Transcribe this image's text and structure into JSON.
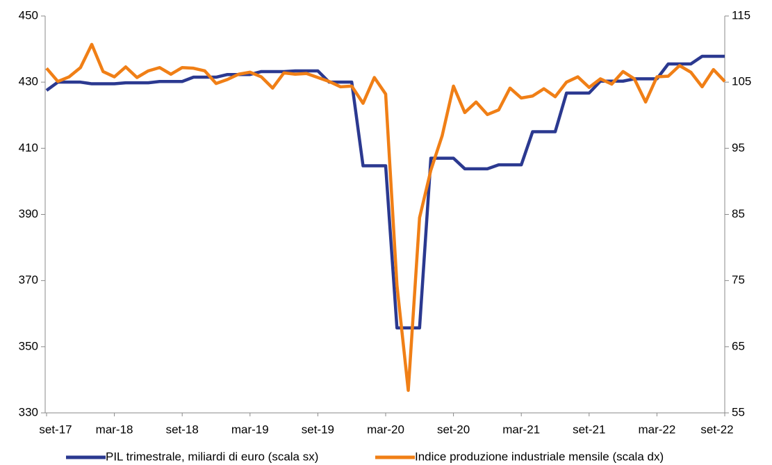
{
  "chart_data": {
    "type": "line",
    "categories": [
      "set-17",
      null,
      null,
      null,
      null,
      null,
      "mar-18",
      null,
      null,
      null,
      null,
      null,
      "set-18",
      null,
      null,
      null,
      null,
      null,
      "mar-19",
      null,
      null,
      null,
      null,
      null,
      "set-19",
      null,
      null,
      null,
      null,
      null,
      "mar-20",
      null,
      null,
      null,
      null,
      null,
      "set-20",
      null,
      null,
      null,
      null,
      null,
      "mar-21",
      null,
      null,
      null,
      null,
      null,
      "set-21",
      null,
      null,
      null,
      null,
      null,
      "mar-22",
      null,
      null,
      null,
      null,
      null,
      "set-22"
    ],
    "series": [
      {
        "name": "PIL trimestrale, miliardi di euro (scala sx)",
        "color": "#2b3990",
        "axis": "y",
        "values": [
          427.5,
          430,
          430,
          430,
          429.5,
          429.5,
          429.5,
          429.8,
          429.8,
          429.8,
          430.2,
          430.2,
          430.2,
          431.5,
          431.5,
          431.5,
          432.3,
          432.3,
          432.3,
          433.2,
          433.2,
          433.2,
          433.4,
          433.4,
          433.4,
          430,
          430,
          430,
          404.7,
          404.7,
          404.7,
          355.7,
          355.7,
          355.7,
          407,
          407,
          407,
          403.8,
          403.8,
          403.8,
          405,
          405,
          405,
          415,
          415,
          415,
          426.7,
          426.7,
          426.7,
          430.3,
          430.3,
          430.3,
          431,
          431,
          431,
          435.5,
          435.5,
          435.5,
          437.8,
          437.8,
          437.8
        ]
      },
      {
        "name": "Indice produzione industriale mensile (scala dx)",
        "color": "#f07f16",
        "axis": "y2",
        "values": [
          107.1,
          105.1,
          105.8,
          107.2,
          110.7,
          106.6,
          105.8,
          107.3,
          105.7,
          106.7,
          107.2,
          106.2,
          107.2,
          107.1,
          106.7,
          104.8,
          105.4,
          106.2,
          106.5,
          105.8,
          104.1,
          106.4,
          106.2,
          106.3,
          105.7,
          105.1,
          104.3,
          104.4,
          101.8,
          105.7,
          103.2,
          74.3,
          58.4,
          84.5,
          91.7,
          96.9,
          104.4,
          100.4,
          102,
          100.1,
          100.8,
          104.1,
          102.6,
          102.9,
          104,
          102.8,
          105,
          105.8,
          104.2,
          105.5,
          104.7,
          106.6,
          105.5,
          102,
          105.8,
          105.9,
          107.5,
          106.5,
          104.3,
          106.9,
          105.1
        ]
      }
    ],
    "ylim": [
      330,
      450
    ],
    "yticks": [
      330,
      350,
      370,
      390,
      410,
      430,
      450
    ],
    "y2lim": [
      55,
      115
    ],
    "y2ticks": [
      55,
      65,
      75,
      85,
      95,
      105,
      115
    ],
    "grid": false,
    "legend": "bottom"
  }
}
